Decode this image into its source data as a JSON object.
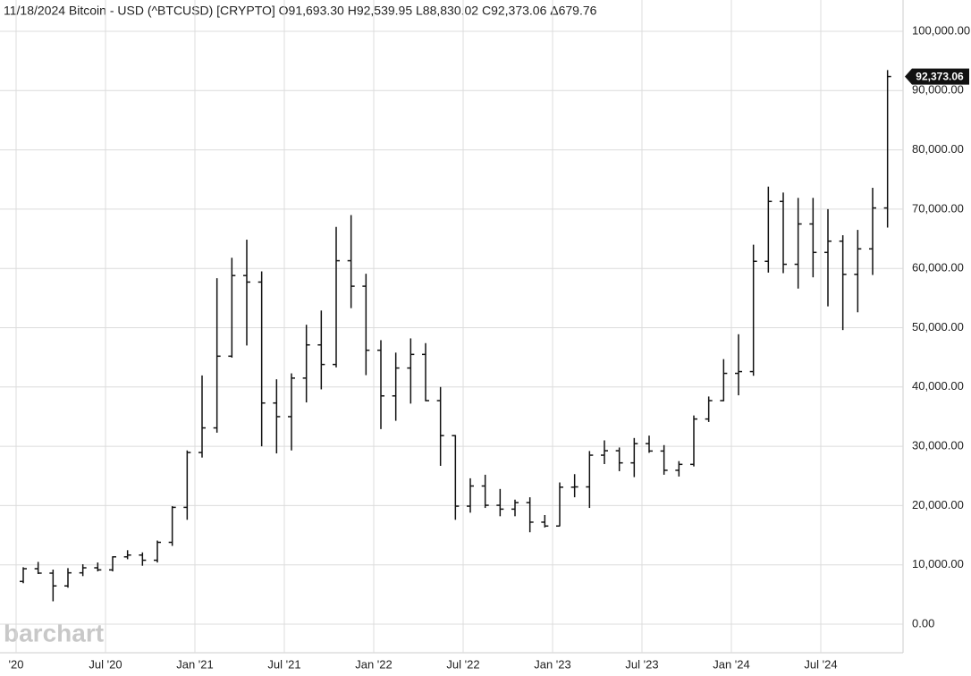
{
  "header": {
    "title": "11/18/2024 Bitcoin - USD (^BTCUSD) [CRYPTO] O91,693.30 H92,539.95 L88,830.02 C92,373.06 Δ679.76"
  },
  "watermark": "barchart",
  "chart_data": {
    "type": "ohlc",
    "color": "#111111",
    "grid": true,
    "x": [
      "2020-01",
      "2020-02",
      "2020-03",
      "2020-04",
      "2020-05",
      "2020-06",
      "2020-07",
      "2020-08",
      "2020-09",
      "2020-10",
      "2020-11",
      "2020-12",
      "2021-01",
      "2021-02",
      "2021-03",
      "2021-04",
      "2021-05",
      "2021-06",
      "2021-07",
      "2021-08",
      "2021-09",
      "2021-10",
      "2021-11",
      "2021-12",
      "2022-01",
      "2022-02",
      "2022-03",
      "2022-04",
      "2022-05",
      "2022-06",
      "2022-07",
      "2022-08",
      "2022-09",
      "2022-10",
      "2022-11",
      "2022-12",
      "2023-01",
      "2023-02",
      "2023-03",
      "2023-04",
      "2023-05",
      "2023-06",
      "2023-07",
      "2023-08",
      "2023-09",
      "2023-10",
      "2023-11",
      "2023-12",
      "2024-01",
      "2024-02",
      "2024-03",
      "2024-04",
      "2024-05",
      "2024-06",
      "2024-07",
      "2024-08",
      "2024-09",
      "2024-10",
      "2024-11"
    ],
    "open": [
      7200,
      9350,
      8600,
      6450,
      8650,
      9500,
      9150,
      11350,
      11650,
      10780,
      13800,
      19700,
      28950,
      33100,
      45200,
      58800,
      57700,
      37300,
      35000,
      41500,
      47100,
      43800,
      61300,
      57000,
      46200,
      38500,
      43200,
      45500,
      37700,
      31800,
      19900,
      23300,
      20050,
      19400,
      20500,
      17200,
      16550,
      23100,
      23150,
      28500,
      29250,
      27200,
      30450,
      29200,
      25950,
      26950,
      34600,
      37700,
      42300,
      42600,
      61200,
      71300,
      60700,
      67500,
      62700,
      64600,
      59000,
      63300,
      70200
    ],
    "high": [
      9600,
      10500,
      9200,
      9450,
      10100,
      10400,
      11450,
      12470,
      12100,
      14100,
      19900,
      29300,
      41950,
      58350,
      61800,
      64850,
      59500,
      41300,
      42300,
      50500,
      52900,
      67000,
      69000,
      59100,
      47900,
      45800,
      48200,
      47400,
      40000,
      31900,
      24600,
      25200,
      22800,
      21000,
      21400,
      18400,
      23900,
      25300,
      29200,
      31000,
      29800,
      31400,
      31800,
      30200,
      27500,
      35200,
      38400,
      44700,
      48900,
      64000,
      73800,
      72800,
      71900,
      71900,
      70000,
      65600,
      66500,
      73600,
      93450
    ],
    "low": [
      6900,
      8450,
      3850,
      6150,
      8100,
      8900,
      8900,
      10950,
      9850,
      10400,
      13200,
      17600,
      28100,
      32300,
      44950,
      47000,
      30000,
      28800,
      29300,
      37400,
      39600,
      43300,
      53300,
      42000,
      32900,
      34300,
      37200,
      37600,
      26700,
      17600,
      18800,
      19600,
      18200,
      18200,
      15500,
      16300,
      16500,
      21400,
      19600,
      27000,
      25800,
      24800,
      28900,
      25200,
      24900,
      26600,
      34100,
      37600,
      38600,
      41900,
      59300,
      59200,
      56600,
      58500,
      53600,
      49600,
      52600,
      58900,
      66900
    ],
    "close": [
      9350,
      8600,
      6450,
      8650,
      9500,
      9150,
      11350,
      11650,
      10780,
      13800,
      19700,
      28950,
      33100,
      45200,
      58800,
      57700,
      37300,
      35000,
      41500,
      47100,
      43800,
      61300,
      57000,
      46200,
      38500,
      43200,
      45500,
      37700,
      31800,
      19900,
      23300,
      20050,
      19400,
      20500,
      17200,
      16550,
      23100,
      23150,
      28500,
      29250,
      27200,
      30450,
      29200,
      25950,
      26950,
      34600,
      37700,
      42300,
      42600,
      61200,
      71300,
      60700,
      67500,
      62700,
      64600,
      59000,
      63300,
      70200,
      92373.06
    ],
    "last_value_label": "92,373.06",
    "ylim": [
      0,
      100000
    ],
    "yticks": [
      {
        "value": 0,
        "label": "0.00"
      },
      {
        "value": 10000,
        "label": "10,000.00"
      },
      {
        "value": 20000,
        "label": "20,000.00"
      },
      {
        "value": 30000,
        "label": "30,000.00"
      },
      {
        "value": 40000,
        "label": "40,000.00"
      },
      {
        "value": 50000,
        "label": "50,000.00"
      },
      {
        "value": 60000,
        "label": "60,000.00"
      },
      {
        "value": 70000,
        "label": "70,000.00"
      },
      {
        "value": 80000,
        "label": "80,000.00"
      },
      {
        "value": 90000,
        "label": "90,000.00"
      },
      {
        "value": 100000,
        "label": "100,000.00"
      }
    ],
    "xticks": [
      {
        "value": "2020-01",
        "label": "'20"
      },
      {
        "value": "2020-07",
        "label": "Jul '20"
      },
      {
        "value": "2021-01",
        "label": "Jan '21"
      },
      {
        "value": "2021-07",
        "label": "Jul '21"
      },
      {
        "value": "2022-01",
        "label": "Jan '22"
      },
      {
        "value": "2022-07",
        "label": "Jul '22"
      },
      {
        "value": "2023-01",
        "label": "Jan '23"
      },
      {
        "value": "2023-07",
        "label": "Jul '23"
      },
      {
        "value": "2024-01",
        "label": "Jan '24"
      },
      {
        "value": "2024-07",
        "label": "Jul '24"
      }
    ]
  }
}
